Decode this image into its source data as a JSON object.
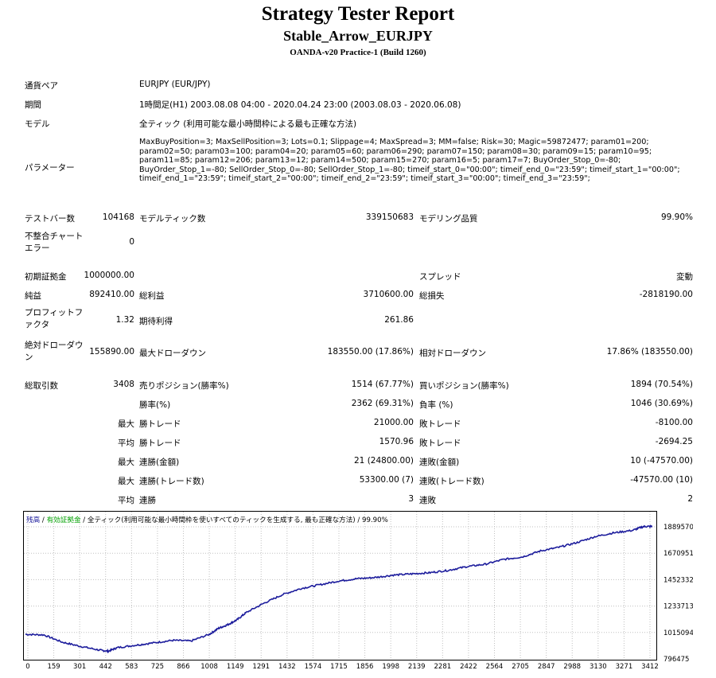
{
  "header": {
    "title": "Strategy Tester Report",
    "subtitle": "Stable_Arrow_EURJPY",
    "server": "OANDA-v20 Practice-1 (Build 1260)"
  },
  "info": {
    "symbol_label": "通貨ペア",
    "symbol_value": "EURJPY (EUR/JPY)",
    "period_label": "期間",
    "period_value": "1時間足(H1) 2003.08.08 04:00 - 2020.04.24 23:00 (2003.08.03 - 2020.06.08)",
    "model_label": "モデル",
    "model_value": "全ティック (利用可能な最小時間枠による最も正確な方法)",
    "params_label": "パラメーター",
    "params_value": "MaxBuyPosition=3; MaxSellPosition=3; Lots=0.1; Slippage=4; MaxSpread=3; MM=false; Risk=30; Magic=59872477; param01=200; param02=50; param03=100; param04=20; param05=60; param06=290; param07=150; param08=30; param09=15; param10=95; param11=85; param12=206; param13=12; param14=500; param15=270; param16=5; param17=7; BuyOrder_Stop_0=-80; BuyOrder_Stop_1=-80; SellOrder_Stop_0=-80; SellOrder_Stop_1=-80; timeif_start_0=\"00:00\"; timeif_end_0=\"23:59\"; timeif_start_1=\"00:00\"; timeif_end_1=\"23:59\"; timeif_start_2=\"00:00\"; timeif_end_2=\"23:59\"; timeif_start_3=\"00:00\"; timeif_end_3=\"23:59\";"
  },
  "stats": {
    "bars_label": "テストバー数",
    "bars_value": "104168",
    "ticks_label": "モデルティック数",
    "ticks_value": "339150683",
    "quality_label": "モデリング品質",
    "quality_value": "99.90%",
    "mismatch_label": "不整合チャートエラー",
    "mismatch_value": "0",
    "deposit_label": "初期証拠金",
    "deposit_value": "1000000.00",
    "spread_label": "スプレッド",
    "spread_value": "変動",
    "net_label": "純益",
    "net_value": "892410.00",
    "gross_profit_label": "総利益",
    "gross_profit_value": "3710600.00",
    "gross_loss_label": "総損失",
    "gross_loss_value": "-2818190.00",
    "pf_label": "プロフィットファクタ",
    "pf_value": "1.32",
    "expected_label": "期待利得",
    "expected_value": "261.86",
    "abs_dd_label": "絶対ドローダウン",
    "abs_dd_value": "155890.00",
    "max_dd_label": "最大ドローダウン",
    "max_dd_value": "183550.00 (17.86%)",
    "rel_dd_label": "相対ドローダウン",
    "rel_dd_value": "17.86% (183550.00)",
    "trades_label": "総取引数",
    "trades_value": "3408",
    "short_label": "売りポジション(勝率%)",
    "short_value": "1514 (67.77%)",
    "long_label": "買いポジション(勝率%)",
    "long_value": "1894 (70.54%)",
    "win_label": "勝率(%)",
    "win_value": "2362 (69.31%)",
    "loss_label": "負率 (%)",
    "loss_value": "1046 (30.69%)",
    "max_label": "最大",
    "avg_label": "平均",
    "largest_win_label": "勝トレード",
    "largest_win_value": "21000.00",
    "largest_loss_label": "敗トレード",
    "largest_loss_value": "-8100.00",
    "avg_win_label": "勝トレード",
    "avg_win_value": "1570.96",
    "avg_loss_label": "敗トレード",
    "avg_loss_value": "-2694.25",
    "cons_wins_money_label": "連勝(金額)",
    "cons_wins_money_value": "21 (24800.00)",
    "cons_losses_money_label": "連敗(金額)",
    "cons_losses_money_value": "10 (-47570.00)",
    "cons_profit_label": "連勝(トレード数)",
    "cons_profit_value": "53300.00 (7)",
    "cons_loss_label": "連敗(トレード数)",
    "cons_loss_value": "-47570.00 (10)",
    "avg_cons_wins_label": "連勝",
    "avg_cons_wins_value": "3",
    "avg_cons_losses_label": "連敗",
    "avg_cons_losses_value": "2"
  },
  "chart_legend": {
    "balance": "残高",
    "sep1": " / ",
    "equity": "有効証拠金",
    "sep2": " / ",
    "rest": "全ティック(利用可能な最小時間枠を使いすべてのティックを生成する, 最も正確な方法) / 99.90%"
  },
  "colors": {
    "balance": "#1c1c9c",
    "equity_label": "#00a000",
    "grid": "#c0c0c0"
  },
  "chart_data": {
    "type": "line",
    "xlabel": "",
    "ylabel": "",
    "x_ticks": [
      "0",
      "159",
      "301",
      "442",
      "583",
      "725",
      "866",
      "1008",
      "1149",
      "1291",
      "1432",
      "1574",
      "1715",
      "1856",
      "1998",
      "2139",
      "2281",
      "2422",
      "2564",
      "2705",
      "2847",
      "2988",
      "3130",
      "3271",
      "3412"
    ],
    "y_ticks": [
      "1889570",
      "1670951",
      "1452332",
      "1233713",
      "1015094",
      "796475"
    ],
    "ylim": [
      796475,
      1889570
    ],
    "xlim": [
      0,
      3408
    ],
    "series": [
      {
        "name": "残高",
        "x": [
          0,
          100,
          200,
          300,
          400,
          450,
          500,
          600,
          700,
          800,
          900,
          1000,
          1050,
          1100,
          1150,
          1200,
          1300,
          1400,
          1500,
          1600,
          1700,
          1800,
          1900,
          2000,
          2100,
          2200,
          2300,
          2400,
          2500,
          2600,
          2700,
          2800,
          2900,
          3000,
          3100,
          3200,
          3300,
          3360,
          3408
        ],
        "y": [
          1000000,
          995000,
          935000,
          900000,
          870000,
          860000,
          890000,
          910000,
          930000,
          950000,
          945000,
          1000000,
          1050000,
          1080000,
          1120000,
          1180000,
          1260000,
          1330000,
          1380000,
          1410000,
          1440000,
          1460000,
          1470000,
          1490000,
          1500000,
          1510000,
          1530000,
          1560000,
          1580000,
          1620000,
          1640000,
          1690000,
          1720000,
          1760000,
          1810000,
          1840000,
          1860000,
          1892000,
          1892410
        ]
      }
    ]
  }
}
